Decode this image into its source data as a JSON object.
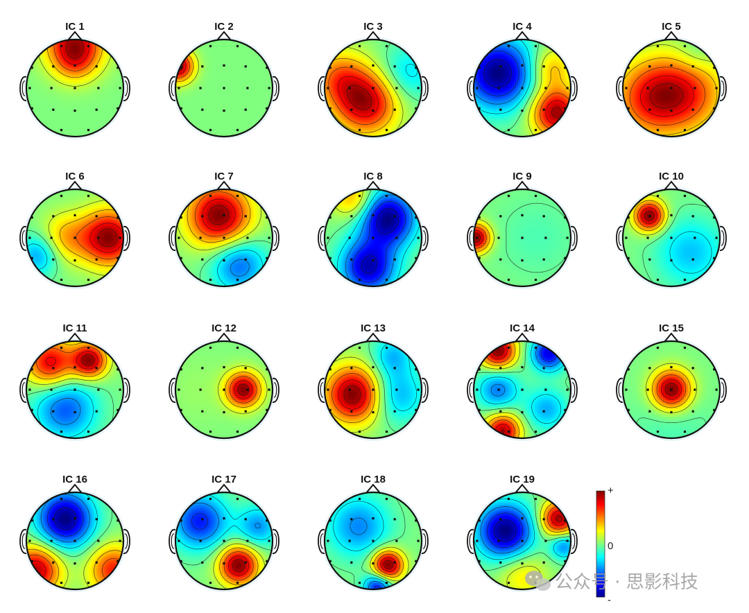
{
  "chart_data": {
    "type": "heatmap",
    "description_type": "scalp-topography",
    "colormap": "jet",
    "colorbar": {
      "max_label": "+",
      "mid_label": "0",
      "min_label": "-"
    },
    "maps": [
      {
        "title": "IC 1",
        "blobs": [
          {
            "u": 0.0,
            "v": -0.95,
            "w": 0.95,
            "s": 0.42
          },
          {
            "u": 0.0,
            "v": -0.55,
            "w": 0.35,
            "s": 0.3
          }
        ]
      },
      {
        "title": "IC 2",
        "blobs": [
          {
            "u": -0.95,
            "v": -0.45,
            "w": 0.8,
            "s": 0.22
          }
        ]
      },
      {
        "title": "IC 3",
        "blobs": [
          {
            "u": -0.15,
            "v": 0.3,
            "w": 1.0,
            "s": 0.45
          },
          {
            "u": -0.7,
            "v": -0.2,
            "w": 0.55,
            "s": 0.4
          },
          {
            "u": 0.7,
            "v": -0.3,
            "w": -0.35,
            "s": 0.4
          }
        ]
      },
      {
        "title": "IC 4",
        "blobs": [
          {
            "u": -0.5,
            "v": -0.3,
            "w": -1.0,
            "s": 0.5
          },
          {
            "u": 0.7,
            "v": 0.5,
            "w": 0.95,
            "s": 0.35
          },
          {
            "u": 0.6,
            "v": -0.4,
            "w": 0.4,
            "s": 0.3
          }
        ]
      },
      {
        "title": "IC 5",
        "blobs": [
          {
            "u": -0.4,
            "v": 0.2,
            "w": 1.0,
            "s": 0.55
          },
          {
            "u": 0.35,
            "v": 0.1,
            "w": 0.8,
            "s": 0.55
          },
          {
            "u": 0.5,
            "v": -0.7,
            "w": -0.2,
            "s": 0.3
          }
        ]
      },
      {
        "title": "IC 6",
        "blobs": [
          {
            "u": 0.7,
            "v": 0.0,
            "w": 1.0,
            "s": 0.4
          },
          {
            "u": -0.2,
            "v": 0.0,
            "w": 0.4,
            "s": 0.35
          },
          {
            "u": -0.75,
            "v": 0.35,
            "w": -0.45,
            "s": 0.3
          }
        ]
      },
      {
        "title": "IC 7",
        "blobs": [
          {
            "u": -0.1,
            "v": -0.45,
            "w": 1.0,
            "s": 0.45
          },
          {
            "u": 0.3,
            "v": 0.55,
            "w": -0.55,
            "s": 0.4
          }
        ]
      },
      {
        "title": "IC 8",
        "blobs": [
          {
            "u": 0.3,
            "v": -0.4,
            "w": -1.0,
            "s": 0.4
          },
          {
            "u": -0.1,
            "v": 0.6,
            "w": -0.9,
            "s": 0.4
          },
          {
            "u": -0.4,
            "v": -0.8,
            "w": 0.45,
            "s": 0.3
          }
        ]
      },
      {
        "title": "IC 9",
        "blobs": [
          {
            "u": -0.95,
            "v": 0.0,
            "w": 1.0,
            "s": 0.2
          },
          {
            "u": 0.3,
            "v": 0.0,
            "w": -0.1,
            "s": 0.6
          }
        ]
      },
      {
        "title": "IC 10",
        "blobs": [
          {
            "u": -0.45,
            "v": -0.45,
            "w": 1.0,
            "s": 0.22
          },
          {
            "u": 0.4,
            "v": 0.3,
            "w": -0.35,
            "s": 0.5
          }
        ]
      },
      {
        "title": "IC 11",
        "blobs": [
          {
            "u": 0.3,
            "v": -0.6,
            "w": 1.0,
            "s": 0.25
          },
          {
            "u": -0.5,
            "v": -0.55,
            "w": 0.85,
            "s": 0.35
          },
          {
            "u": -0.2,
            "v": 0.4,
            "w": -0.6,
            "s": 0.45
          }
        ]
      },
      {
        "title": "IC 12",
        "blobs": [
          {
            "u": 0.4,
            "v": 0.0,
            "w": 1.0,
            "s": 0.25
          },
          {
            "u": -0.5,
            "v": 0.0,
            "w": 0.05,
            "s": 0.5
          }
        ]
      },
      {
        "title": "IC 13",
        "blobs": [
          {
            "u": -0.4,
            "v": 0.1,
            "w": 1.0,
            "s": 0.4
          },
          {
            "u": 0.5,
            "v": 0.1,
            "w": -0.4,
            "s": 0.4
          },
          {
            "u": 0.4,
            "v": -0.7,
            "w": -0.35,
            "s": 0.3
          }
        ]
      },
      {
        "title": "IC 14",
        "blobs": [
          {
            "u": -0.5,
            "v": -0.8,
            "w": 1.0,
            "s": 0.25
          },
          {
            "u": -0.4,
            "v": 0.85,
            "w": 0.9,
            "s": 0.25
          },
          {
            "u": 0.55,
            "v": -0.75,
            "w": -0.8,
            "s": 0.25
          },
          {
            "u": -0.5,
            "v": 0.0,
            "w": -0.5,
            "s": 0.3
          },
          {
            "u": 0.5,
            "v": 0.4,
            "w": -0.4,
            "s": 0.3
          }
        ]
      },
      {
        "title": "IC 15",
        "blobs": [
          {
            "u": 0.0,
            "v": 0.0,
            "w": 1.0,
            "s": 0.28
          },
          {
            "u": 0.0,
            "v": 0.7,
            "w": -0.1,
            "s": 0.6
          }
        ]
      },
      {
        "title": "IC 16",
        "blobs": [
          {
            "u": -0.2,
            "v": -0.45,
            "w": -1.0,
            "s": 0.4
          },
          {
            "u": -0.8,
            "v": 0.6,
            "w": 0.9,
            "s": 0.35
          },
          {
            "u": 0.8,
            "v": 0.6,
            "w": 0.7,
            "s": 0.35
          }
        ]
      },
      {
        "title": "IC 17",
        "blobs": [
          {
            "u": 0.3,
            "v": 0.5,
            "w": 1.0,
            "s": 0.28
          },
          {
            "u": -0.5,
            "v": -0.4,
            "w": -0.7,
            "s": 0.4
          },
          {
            "u": 0.7,
            "v": -0.3,
            "w": -0.45,
            "s": 0.3
          }
        ]
      },
      {
        "title": "IC 18",
        "blobs": [
          {
            "u": 0.3,
            "v": 0.5,
            "w": 1.0,
            "s": 0.22
          },
          {
            "u": -0.3,
            "v": -0.3,
            "w": -0.45,
            "s": 0.45
          },
          {
            "u": 0.1,
            "v": 0.95,
            "w": -0.7,
            "s": 0.2
          }
        ]
      },
      {
        "title": "IC 19",
        "blobs": [
          {
            "u": -0.35,
            "v": -0.2,
            "w": -1.0,
            "s": 0.4
          },
          {
            "u": 0.75,
            "v": -0.45,
            "w": 0.95,
            "s": 0.25
          },
          {
            "u": 0.0,
            "v": 0.7,
            "w": 0.3,
            "s": 0.35
          },
          {
            "u": 0.85,
            "v": 0.1,
            "w": -0.5,
            "s": 0.2
          }
        ]
      }
    ]
  },
  "watermark": {
    "text": "公众号 · 思影科技",
    "icon": "wechat-icon"
  }
}
